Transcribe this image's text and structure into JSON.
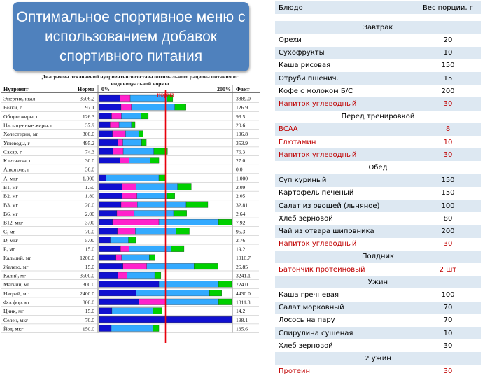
{
  "title": "Оптимальное спортивное меню с использованием добавок спортивного питания",
  "chart": {
    "caption": "Диаграмма отклонений нутриентного состава оптимального рациона питания от индивидуальной нормы",
    "col_nutrient": "Нутриент",
    "col_norm": "Норма",
    "col_0": "0%",
    "col_200": "200%",
    "col_fact": "Факт",
    "norm_label": "норма",
    "norm_line_color": "#e8000b"
  },
  "chart_data": {
    "type": "bar",
    "title": "Диаграмма отклонений нутриентного состава оптимального рациона питания от индивидуальной нормы",
    "xlim": [
      0,
      200
    ],
    "rows": [
      {
        "name": "Энергия, ккал",
        "norm": "3506.2",
        "fact": "3889.0",
        "segments": [
          "#1010d0",
          "#ff22cc",
          "#33aaff",
          "#00d000"
        ],
        "weights": [
          0.28,
          0.14,
          0.5,
          0.08
        ],
        "pct": 111
      },
      {
        "name": "Белки, г",
        "norm": "97.1",
        "fact": "126.9",
        "segments": [
          "#1010d0",
          "#ff22cc",
          "#33aaff",
          "#00d000"
        ],
        "weights": [
          0.25,
          0.12,
          0.5,
          0.13
        ],
        "pct": 131
      },
      {
        "name": "Общие жиры, г",
        "norm": "126.3",
        "fact": "93.5",
        "segments": [
          "#1010d0",
          "#ff22cc",
          "#33aaff",
          "#00d000"
        ],
        "weights": [
          0.25,
          0.2,
          0.4,
          0.15
        ],
        "pct": 74
      },
      {
        "name": "Насыщенные жиры, г",
        "norm": "37.9",
        "fact": "20.6",
        "segments": [
          "#1010d0",
          "#ff22cc",
          "#33aaff",
          "#00d000"
        ],
        "weights": [
          0.3,
          0.25,
          0.35,
          0.1
        ],
        "pct": 54
      },
      {
        "name": "Холестерин, мг",
        "norm": "300.0",
        "fact": "196.8",
        "segments": [
          "#1010d0",
          "#ff22cc",
          "#33aaff",
          "#00d000"
        ],
        "weights": [
          0.3,
          0.3,
          0.3,
          0.1
        ],
        "pct": 66
      },
      {
        "name": "Углеводы, г",
        "norm": "495.2",
        "fact": "353.9",
        "segments": [
          "#1010d0",
          "#ff22cc",
          "#33aaff",
          "#00d000"
        ],
        "weights": [
          0.4,
          0.1,
          0.4,
          0.1
        ],
        "pct": 71
      },
      {
        "name": "Сахар, г",
        "norm": "74.3",
        "fact": "76.3",
        "segments": [
          "#1010d0",
          "#ff22cc",
          "#33aaff",
          "#00d000"
        ],
        "weights": [
          0.2,
          0.15,
          0.45,
          0.2
        ],
        "pct": 103
      },
      {
        "name": "Клетчатка, г",
        "norm": "30.0",
        "fact": "27.0",
        "segments": [
          "#1010d0",
          "#ff22cc",
          "#33aaff",
          "#00d000"
        ],
        "weights": [
          0.35,
          0.15,
          0.35,
          0.15
        ],
        "pct": 90
      },
      {
        "name": "Алкоголь, г",
        "norm": "36.0",
        "fact": "0.0",
        "segments": [],
        "weights": [],
        "pct": 0
      },
      {
        "name": "А, мкг",
        "norm": "1.000",
        "fact": "1.000",
        "segments": [
          "#1010d0",
          "#33aaff",
          "#00d000"
        ],
        "weights": [
          0.1,
          0.8,
          0.1
        ],
        "pct": 100
      },
      {
        "name": "В1, мг",
        "norm": "1.50",
        "fact": "2.09",
        "segments": [
          "#1010d0",
          "#ff22cc",
          "#33aaff",
          "#00d000"
        ],
        "weights": [
          0.25,
          0.15,
          0.45,
          0.15
        ],
        "pct": 139
      },
      {
        "name": "В2, мг",
        "norm": "1.80",
        "fact": "2.05",
        "segments": [
          "#1010d0",
          "#ff22cc",
          "#33aaff",
          "#00d000"
        ],
        "weights": [
          0.3,
          0.2,
          0.4,
          0.1
        ],
        "pct": 114
      },
      {
        "name": "В3, мг",
        "norm": "20.0",
        "fact": "32.81",
        "segments": [
          "#1010d0",
          "#ff22cc",
          "#33aaff",
          "#00d000"
        ],
        "weights": [
          0.2,
          0.15,
          0.45,
          0.2
        ],
        "pct": 164
      },
      {
        "name": "В6, мг",
        "norm": "2.00",
        "fact": "2.64",
        "segments": [
          "#1010d0",
          "#ff22cc",
          "#33aaff",
          "#00d000"
        ],
        "weights": [
          0.2,
          0.2,
          0.45,
          0.15
        ],
        "pct": 132
      },
      {
        "name": "В12, мкг",
        "norm": "3.00",
        "fact": "7.92",
        "segments": [
          "#1010d0",
          "#ff22cc",
          "#33aaff",
          "#00d000"
        ],
        "weights": [
          0.1,
          0.35,
          0.45,
          0.1
        ],
        "pct": 200
      },
      {
        "name": "С, мг",
        "norm": "70.0",
        "fact": "95.3",
        "segments": [
          "#1010d0",
          "#ff22cc",
          "#33aaff",
          "#00d000"
        ],
        "weights": [
          0.2,
          0.2,
          0.45,
          0.15
        ],
        "pct": 136
      },
      {
        "name": "D, мкг",
        "norm": "5.00",
        "fact": "2.76",
        "segments": [
          "#1010d0",
          "#33aaff",
          "#00d000"
        ],
        "weights": [
          0.3,
          0.5,
          0.2
        ],
        "pct": 55
      },
      {
        "name": "Е, мг",
        "norm": "15.0",
        "fact": "19.2",
        "segments": [
          "#1010d0",
          "#ff22cc",
          "#33aaff",
          "#00d000"
        ],
        "weights": [
          0.25,
          0.1,
          0.5,
          0.15
        ],
        "pct": 128
      },
      {
        "name": "Кальций, мг",
        "norm": "1200.0",
        "fact": "1010.7",
        "segments": [
          "#1010d0",
          "#ff22cc",
          "#33aaff",
          "#00d000"
        ],
        "weights": [
          0.3,
          0.1,
          0.5,
          0.1
        ],
        "pct": 84
      },
      {
        "name": "Железо, мг",
        "norm": "15.0",
        "fact": "26.85",
        "segments": [
          "#1010d0",
          "#ff22cc",
          "#33aaff",
          "#00d000"
        ],
        "weights": [
          0.2,
          0.2,
          0.4,
          0.2
        ],
        "pct": 179
      },
      {
        "name": "Калий, мг",
        "norm": "3500.0",
        "fact": "3241.1",
        "segments": [
          "#1010d0",
          "#ff22cc",
          "#33aaff",
          "#00d000"
        ],
        "weights": [
          0.3,
          0.15,
          0.45,
          0.1
        ],
        "pct": 93
      },
      {
        "name": "Магний, мг",
        "norm": "300.0",
        "fact": "724.0",
        "segments": [
          "#1010d0",
          "#33aaff",
          "#00d000"
        ],
        "weights": [
          0.45,
          0.45,
          0.1
        ],
        "pct": 200
      },
      {
        "name": "Натрий, мг",
        "norm": "2400.0",
        "fact": "4430.0",
        "segments": [
          "#1010d0",
          "#33aaff",
          "#00d000"
        ],
        "weights": [
          0.3,
          0.6,
          0.1
        ],
        "pct": 185
      },
      {
        "name": "Фосфор, мг",
        "norm": "800.0",
        "fact": "1811.8",
        "segments": [
          "#1010d0",
          "#ff22cc",
          "#33aaff",
          "#00d000"
        ],
        "weights": [
          0.3,
          0.2,
          0.4,
          0.1
        ],
        "pct": 200
      },
      {
        "name": "Цинк, мг",
        "norm": "15.0",
        "fact": "14.2",
        "segments": [
          "#1010d0",
          "#33aaff",
          "#00d000"
        ],
        "weights": [
          0.2,
          0.65,
          0.15
        ],
        "pct": 95
      },
      {
        "name": "Селен, мкг",
        "norm": "70.0",
        "fact": "198.1",
        "segments": [
          "#1010d0"
        ],
        "weights": [
          1
        ],
        "pct": 200
      },
      {
        "name": "Йод, мкг",
        "norm": "150.0",
        "fact": "135.6",
        "segments": [
          "#1010d0",
          "#33aaff",
          "#00d000"
        ],
        "weights": [
          0.2,
          0.7,
          0.1
        ],
        "pct": 90
      }
    ]
  },
  "menu": {
    "header_dish": "Блюдо",
    "header_portion": "Вес порции, г",
    "rows": [
      {
        "kind": "section",
        "text": "Завтрак"
      },
      {
        "dish": "Орехи",
        "portion": "20"
      },
      {
        "dish": "Сухофрукты",
        "portion": "10"
      },
      {
        "dish": "Каша рисовая",
        "portion": "150"
      },
      {
        "dish": "Отруби пшенич.",
        "portion": "15"
      },
      {
        "dish": "Кофе с молоком Б/С",
        "portion": "200"
      },
      {
        "dish": "Напиток углеводный",
        "portion": "30",
        "red": true
      },
      {
        "kind": "section",
        "text": "Перед тренировкой"
      },
      {
        "dish": "ВСАА",
        "portion": "8",
        "red": true
      },
      {
        "dish": "Глютамин",
        "portion": "10",
        "red": true
      },
      {
        "dish": "Напиток углеводный",
        "portion": "30",
        "red": true
      },
      {
        "kind": "section",
        "text": "Обед"
      },
      {
        "dish": "Суп куриный",
        "portion": "150"
      },
      {
        "dish": "Картофель печеный",
        "portion": "150"
      },
      {
        "dish": "Салат из овощей (льняное)",
        "portion": "100"
      },
      {
        "dish": "Хлеб зерновой",
        "portion": "80"
      },
      {
        "dish": "Чай из отвара шиповника",
        "portion": "200"
      },
      {
        "dish": "Напиток углеводный",
        "portion": "30",
        "red": true
      },
      {
        "kind": "section",
        "text": "Полдник"
      },
      {
        "dish": "Батончик протеиновый",
        "portion": "2 шт",
        "red": true
      },
      {
        "kind": "section",
        "text": "Ужин"
      },
      {
        "dish": "Каша гречневая",
        "portion": "100"
      },
      {
        "dish": "Салат морковный",
        "portion": "70"
      },
      {
        "dish": "Лосось на пару",
        "portion": "70"
      },
      {
        "dish": "Спирулина сушеная",
        "portion": "10"
      },
      {
        "dish": "Хлеб зерновой",
        "portion": "30"
      },
      {
        "kind": "section",
        "text": "2 ужин"
      },
      {
        "dish": "Протеин",
        "portion": "30",
        "red": true
      }
    ]
  }
}
